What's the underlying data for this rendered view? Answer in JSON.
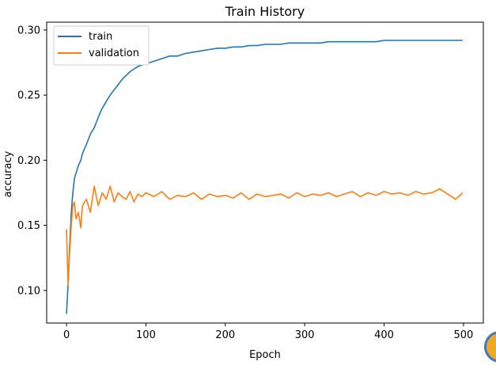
{
  "chart_data": {
    "type": "line",
    "title": "Train History",
    "xlabel": "Epoch",
    "ylabel": "accuracy",
    "xlim": [
      -25,
      525
    ],
    "ylim": [
      0.075,
      0.306
    ],
    "xticks": [
      0,
      100,
      200,
      300,
      400,
      500
    ],
    "xtick_labels": [
      "0",
      "100",
      "200",
      "300",
      "400",
      "500"
    ],
    "yticks": [
      0.1,
      0.15,
      0.2,
      0.25,
      0.3
    ],
    "ytick_labels": [
      "0.10",
      "0.15",
      "0.20",
      "0.25",
      "0.30"
    ],
    "grid": false,
    "legend_position": "top-left",
    "series": [
      {
        "name": "train",
        "color": "#1f77b4",
        "x": [
          0,
          2,
          4,
          6,
          8,
          10,
          12,
          15,
          18,
          20,
          25,
          30,
          35,
          40,
          45,
          50,
          55,
          60,
          65,
          70,
          75,
          80,
          85,
          90,
          95,
          100,
          110,
          120,
          130,
          140,
          150,
          160,
          170,
          180,
          190,
          200,
          210,
          220,
          230,
          240,
          250,
          260,
          270,
          280,
          290,
          300,
          310,
          320,
          330,
          340,
          350,
          360,
          370,
          380,
          390,
          400,
          410,
          420,
          430,
          440,
          450,
          460,
          470,
          480,
          490,
          499
        ],
        "values": [
          0.082,
          0.105,
          0.135,
          0.16,
          0.175,
          0.186,
          0.19,
          0.196,
          0.2,
          0.205,
          0.212,
          0.22,
          0.225,
          0.233,
          0.24,
          0.245,
          0.25,
          0.254,
          0.258,
          0.262,
          0.265,
          0.268,
          0.27,
          0.272,
          0.273,
          0.274,
          0.276,
          0.278,
          0.28,
          0.28,
          0.282,
          0.283,
          0.284,
          0.285,
          0.286,
          0.286,
          0.287,
          0.287,
          0.288,
          0.288,
          0.289,
          0.289,
          0.289,
          0.29,
          0.29,
          0.29,
          0.29,
          0.29,
          0.291,
          0.291,
          0.291,
          0.291,
          0.291,
          0.291,
          0.291,
          0.292,
          0.292,
          0.292,
          0.292,
          0.292,
          0.292,
          0.292,
          0.292,
          0.292,
          0.292,
          0.292
        ]
      },
      {
        "name": "validation",
        "color": "#ff7f0e",
        "x": [
          0,
          2,
          4,
          6,
          8,
          10,
          12,
          15,
          18,
          20,
          25,
          30,
          35,
          40,
          45,
          50,
          55,
          60,
          65,
          70,
          75,
          80,
          85,
          90,
          95,
          100,
          110,
          120,
          130,
          140,
          150,
          160,
          170,
          180,
          190,
          200,
          210,
          220,
          230,
          240,
          250,
          260,
          270,
          280,
          290,
          300,
          310,
          320,
          330,
          340,
          350,
          360,
          370,
          380,
          390,
          400,
          410,
          420,
          430,
          440,
          450,
          460,
          470,
          480,
          490,
          499
        ],
        "values": [
          0.147,
          0.104,
          0.13,
          0.15,
          0.165,
          0.168,
          0.155,
          0.16,
          0.148,
          0.165,
          0.17,
          0.16,
          0.18,
          0.165,
          0.175,
          0.17,
          0.18,
          0.168,
          0.175,
          0.172,
          0.17,
          0.176,
          0.168,
          0.174,
          0.172,
          0.175,
          0.172,
          0.176,
          0.17,
          0.173,
          0.172,
          0.175,
          0.17,
          0.174,
          0.172,
          0.173,
          0.171,
          0.175,
          0.17,
          0.174,
          0.172,
          0.173,
          0.174,
          0.171,
          0.175,
          0.172,
          0.174,
          0.173,
          0.175,
          0.172,
          0.174,
          0.176,
          0.172,
          0.175,
          0.173,
          0.176,
          0.174,
          0.175,
          0.173,
          0.176,
          0.174,
          0.175,
          0.178,
          0.174,
          0.17,
          0.175
        ]
      }
    ]
  }
}
